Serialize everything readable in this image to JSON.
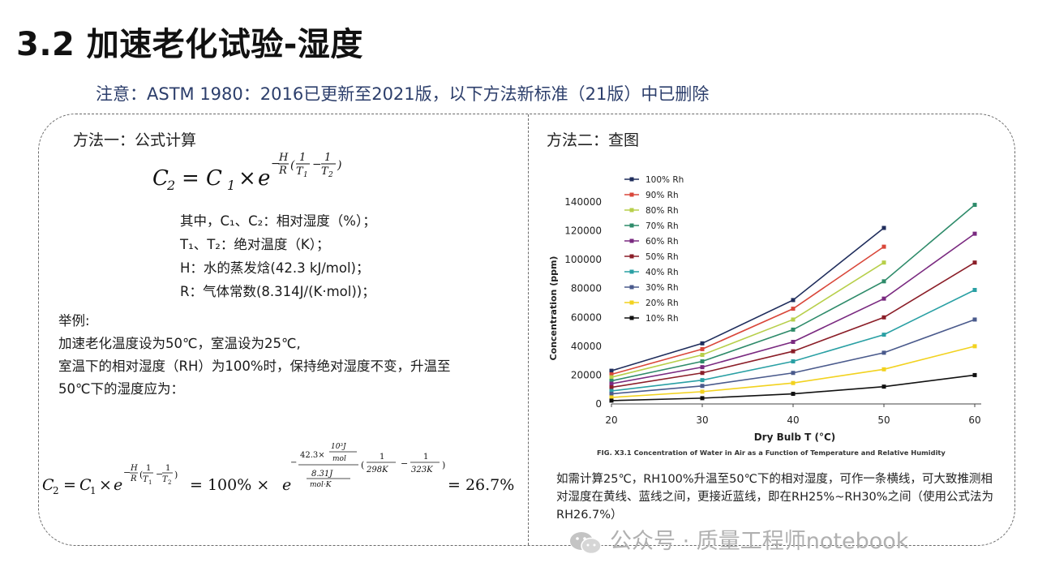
{
  "slide": {
    "title": "3.2 加速老化试验-湿度",
    "notice": "注意：ASTM 1980：2016已更新至2021版，以下方法新标准（21版）中已删除"
  },
  "method1": {
    "heading": "方法一：公式计算",
    "definitions": [
      "其中，C₁、C₂：相对湿度（%）；",
      "T₁、T₂：绝对温度（K）；",
      "H：水的蒸发焓(42.3 kJ/mol)；",
      "R：气体常数(8.314J/(K·mol))；"
    ],
    "example_label": "举例:",
    "example_lines": [
      "加速老化温度设为50℃，室温设为25℃,",
      "室温下的相对湿度（RH）为100%时，保持绝对湿度不变，升温至",
      "50℃下的湿度应为："
    ],
    "formula2_terms": {
      "pct100": "= 100% ×",
      "result": "= 26.7%",
      "num": "42.3×",
      "num_unit_top": "10³J",
      "num_unit_bot": "mol",
      "den": "8.31J",
      "den_unit": "mol·K",
      "t1": "298K",
      "t2": "323K"
    }
  },
  "method2": {
    "heading": "方法二：查图",
    "note": "如需计算25℃，RH100%升温至50℃下的相对湿度，可作一条横线，可大致推测相对湿度在黄线、蓝线之间，更接近蓝线，即在RH25%~RH30%之间（使用公式法为RH26.7%）"
  },
  "watermark": "公众号 · 质量工程师notebook",
  "chart_data": {
    "type": "line",
    "title": "",
    "caption": "FIG. X3.1 Concentration of Water in Air as a Function of Temperature and Relative Humidity",
    "xlabel": "Dry Bulb T (°C)",
    "ylabel": "Concentration (ppm)",
    "xlim": [
      20,
      60
    ],
    "ylim": [
      0,
      140000
    ],
    "x_ticks": [
      20,
      30,
      40,
      50,
      60
    ],
    "y_ticks": [
      0,
      20000,
      40000,
      60000,
      80000,
      100000,
      120000,
      140000
    ],
    "grid": false,
    "legend_position": "top-left",
    "series": [
      {
        "name": "100% Rh",
        "color": "#1f2d5c",
        "x": [
          20,
          30,
          40,
          50
        ],
        "values": [
          23000,
          42000,
          72000,
          122000
        ]
      },
      {
        "name": "90% Rh",
        "color": "#d9473a",
        "x": [
          20,
          30,
          40,
          50
        ],
        "values": [
          20500,
          38000,
          66000,
          109000
        ]
      },
      {
        "name": "80% Rh",
        "color": "#b7cf4a",
        "x": [
          20,
          30,
          40,
          50
        ],
        "values": [
          18500,
          34000,
          58500,
          98000
        ]
      },
      {
        "name": "70% Rh",
        "color": "#2e8b6a",
        "x": [
          20,
          30,
          40,
          50,
          60
        ],
        "values": [
          16000,
          29500,
          51500,
          85000,
          138000
        ]
      },
      {
        "name": "60% Rh",
        "color": "#7a2a80",
        "x": [
          20,
          30,
          40,
          50,
          60
        ],
        "values": [
          14000,
          25500,
          43000,
          73000,
          118000
        ]
      },
      {
        "name": "50% Rh",
        "color": "#8b1e28",
        "x": [
          20,
          30,
          40,
          50,
          60
        ],
        "values": [
          11500,
          21500,
          36500,
          60000,
          98000
        ]
      },
      {
        "name": "40% Rh",
        "color": "#2aa0a4",
        "x": [
          20,
          30,
          40,
          50,
          60
        ],
        "values": [
          9000,
          16500,
          29500,
          48000,
          79000
        ]
      },
      {
        "name": "30% Rh",
        "color": "#4a5a8c",
        "x": [
          20,
          30,
          40,
          50,
          60
        ],
        "values": [
          7000,
          12500,
          21500,
          35500,
          58500
        ]
      },
      {
        "name": "20% Rh",
        "color": "#f2d21f",
        "x": [
          20,
          30,
          40,
          50,
          60
        ],
        "values": [
          4500,
          8500,
          14500,
          24000,
          40000
        ]
      },
      {
        "name": "10% Rh",
        "color": "#111111",
        "x": [
          20,
          30,
          40,
          50,
          60
        ],
        "values": [
          2300,
          4000,
          7000,
          12000,
          20000
        ]
      }
    ]
  }
}
